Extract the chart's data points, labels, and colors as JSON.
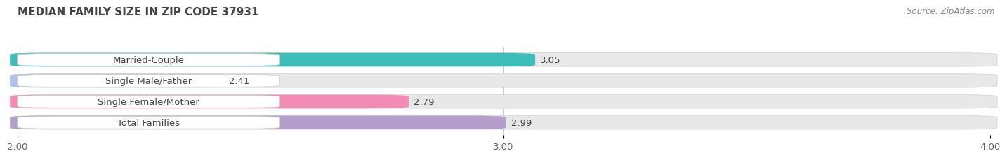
{
  "title": "Median Family Size in Zip Code 37931",
  "title_upper": "MEDIAN FAMILY SIZE IN ZIP CODE 37931",
  "source": "Source: ZipAtlas.com",
  "categories": [
    "Married-Couple",
    "Single Male/Father",
    "Single Female/Mother",
    "Total Families"
  ],
  "values": [
    3.05,
    2.41,
    2.79,
    2.99
  ],
  "bar_colors": [
    "#3bbdb8",
    "#b0c0e8",
    "#f28cb4",
    "#b49ecc"
  ],
  "bar_bg_color": "#e8e8e8",
  "xlim": [
    2.0,
    4.0
  ],
  "xticks": [
    2.0,
    3.0,
    4.0
  ],
  "xtick_labels": [
    "2.00",
    "3.00",
    "4.00"
  ],
  "bg_color": "#ffffff",
  "bar_height": 0.62,
  "bar_gap": 0.15,
  "title_fontsize": 11,
  "label_fontsize": 9.5,
  "value_fontsize": 9.5,
  "source_fontsize": 8.5
}
